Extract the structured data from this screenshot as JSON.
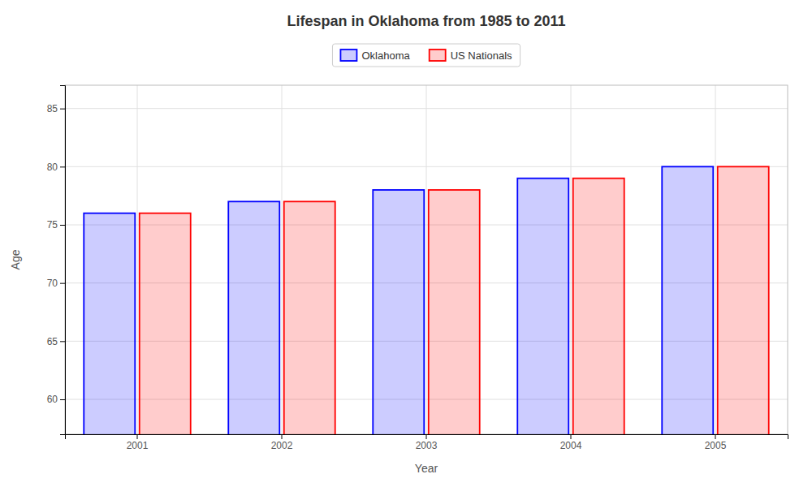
{
  "chart_data": {
    "type": "bar",
    "title": "Lifespan in Oklahoma from 1985 to 2011",
    "xlabel": "Year",
    "ylabel": "Age",
    "categories": [
      "2001",
      "2002",
      "2003",
      "2004",
      "2005"
    ],
    "series": [
      {
        "name": "Oklahoma",
        "color": "#0000ff",
        "values": [
          76,
          77,
          78,
          79,
          80
        ]
      },
      {
        "name": "US Nationals",
        "color": "#ff0000",
        "values": [
          76,
          77,
          78,
          79,
          80
        ]
      }
    ],
    "ylim": [
      57,
      87
    ],
    "yticks": [
      60,
      65,
      70,
      75,
      80,
      85
    ],
    "grid": true,
    "legend": "top"
  }
}
